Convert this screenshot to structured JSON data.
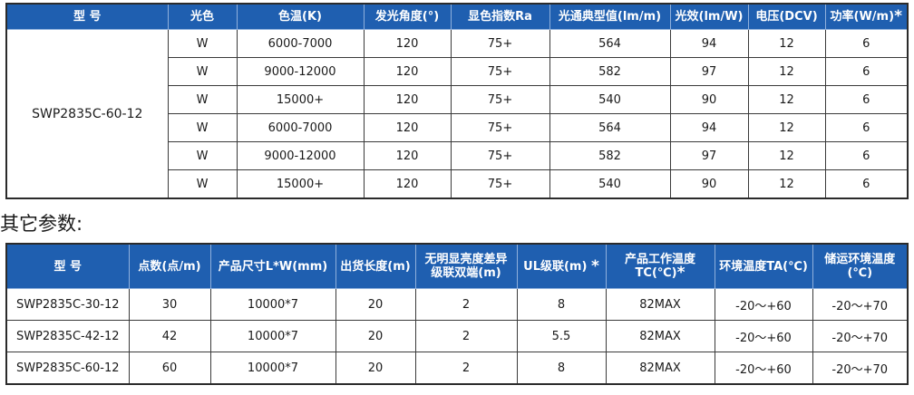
{
  "table1": {
    "headers": [
      "型  号",
      "光色",
      "色温(K)",
      "发光角度(°)",
      "显色指数Ra",
      "光通典型值(lm/m)",
      "光效(lm/W)",
      "电压(DCV)",
      "功率(W/m)"
    ],
    "star": "*",
    "model": "SWP2835C-60-12",
    "rows": [
      [
        "W",
        "6000-7000",
        "120",
        "75+",
        "564",
        "94",
        "12",
        "6"
      ],
      [
        "W",
        "9000-12000",
        "120",
        "75+",
        "582",
        "97",
        "12",
        "6"
      ],
      [
        "W",
        "15000+",
        "120",
        "75+",
        "540",
        "90",
        "12",
        "6"
      ],
      [
        "W",
        "6000-7000",
        "120",
        "75+",
        "564",
        "94",
        "12",
        "6"
      ],
      [
        "W",
        "9000-12000",
        "120",
        "75+",
        "582",
        "97",
        "12",
        "6"
      ],
      [
        "W",
        "15000+",
        "120",
        "75+",
        "540",
        "90",
        "12",
        "6"
      ]
    ]
  },
  "section_title": "其它参数:",
  "table2": {
    "headers": {
      "model": "型  号",
      "points": "点数(点/m)",
      "size": "产品尺寸L*W(mm)",
      "length": "出货长度(m)",
      "nodiff_1": "无明显亮度差异",
      "nodiff_2": "级联双端(m)",
      "ul": "UL级联(m)",
      "tc_1": "产品工作温度",
      "tc_2": "TC(℃)",
      "ta": "环境温度TA(℃)",
      "storage": "储运环境温度(℃)",
      "star": "*"
    },
    "rows": [
      [
        "SWP2835C-30-12",
        "30",
        "10000*7",
        "20",
        "2",
        "8",
        "82MAX",
        "-20～+60",
        "-20～+70"
      ],
      [
        "SWP2835C-42-12",
        "42",
        "10000*7",
        "20",
        "2",
        "5.5",
        "82MAX",
        "-20～+60",
        "-20～+70"
      ],
      [
        "SWP2835C-60-12",
        "60",
        "10000*7",
        "20",
        "2",
        "8",
        "82MAX",
        "-20～+60",
        "-20～+70"
      ]
    ]
  }
}
